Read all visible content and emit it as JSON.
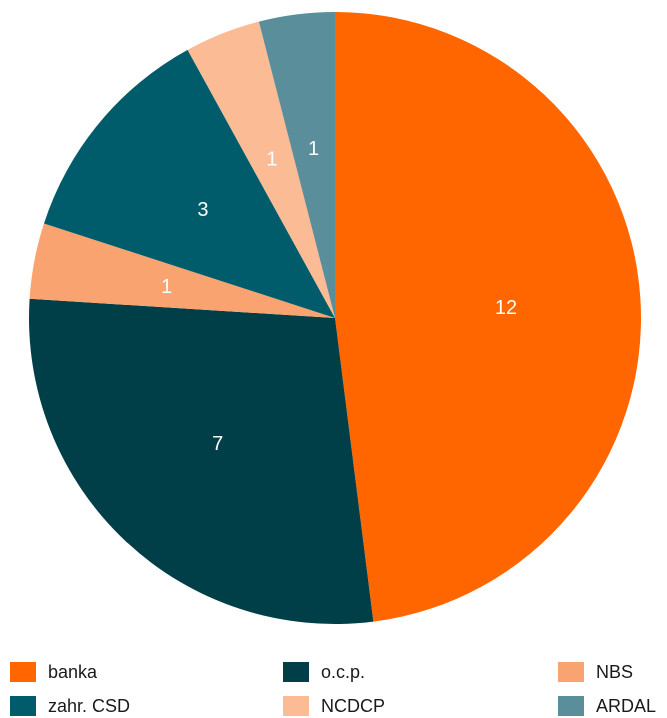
{
  "chart_data": {
    "type": "pie",
    "title": "",
    "start_angle_deg": 0,
    "direction": "clockwise",
    "slices": [
      {
        "label": "banka",
        "value": 12,
        "color": "#FF6600"
      },
      {
        "label": "o.c.p.",
        "value": 7,
        "color": "#003F47"
      },
      {
        "label": "NBS",
        "value": 1,
        "color": "#F9A371"
      },
      {
        "label": "zahr. CSD",
        "value": 3,
        "color": "#005B6A"
      },
      {
        "label": "NCDCP",
        "value": 1,
        "color": "#FBBB94"
      },
      {
        "label": "ARDAL",
        "value": 1,
        "color": "#5A8E9A"
      }
    ],
    "legend": {
      "position": "bottom",
      "items": [
        {
          "label": "banka",
          "color": "#FF6600"
        },
        {
          "label": "o.c.p.",
          "color": "#003F47"
        },
        {
          "label": "NBS",
          "color": "#F9A371"
        },
        {
          "label": "zahr. CSD",
          "color": "#005B6A"
        },
        {
          "label": "NCDCP",
          "color": "#FBBB94"
        },
        {
          "label": "ARDAL",
          "color": "#5A8E9A"
        }
      ]
    }
  }
}
